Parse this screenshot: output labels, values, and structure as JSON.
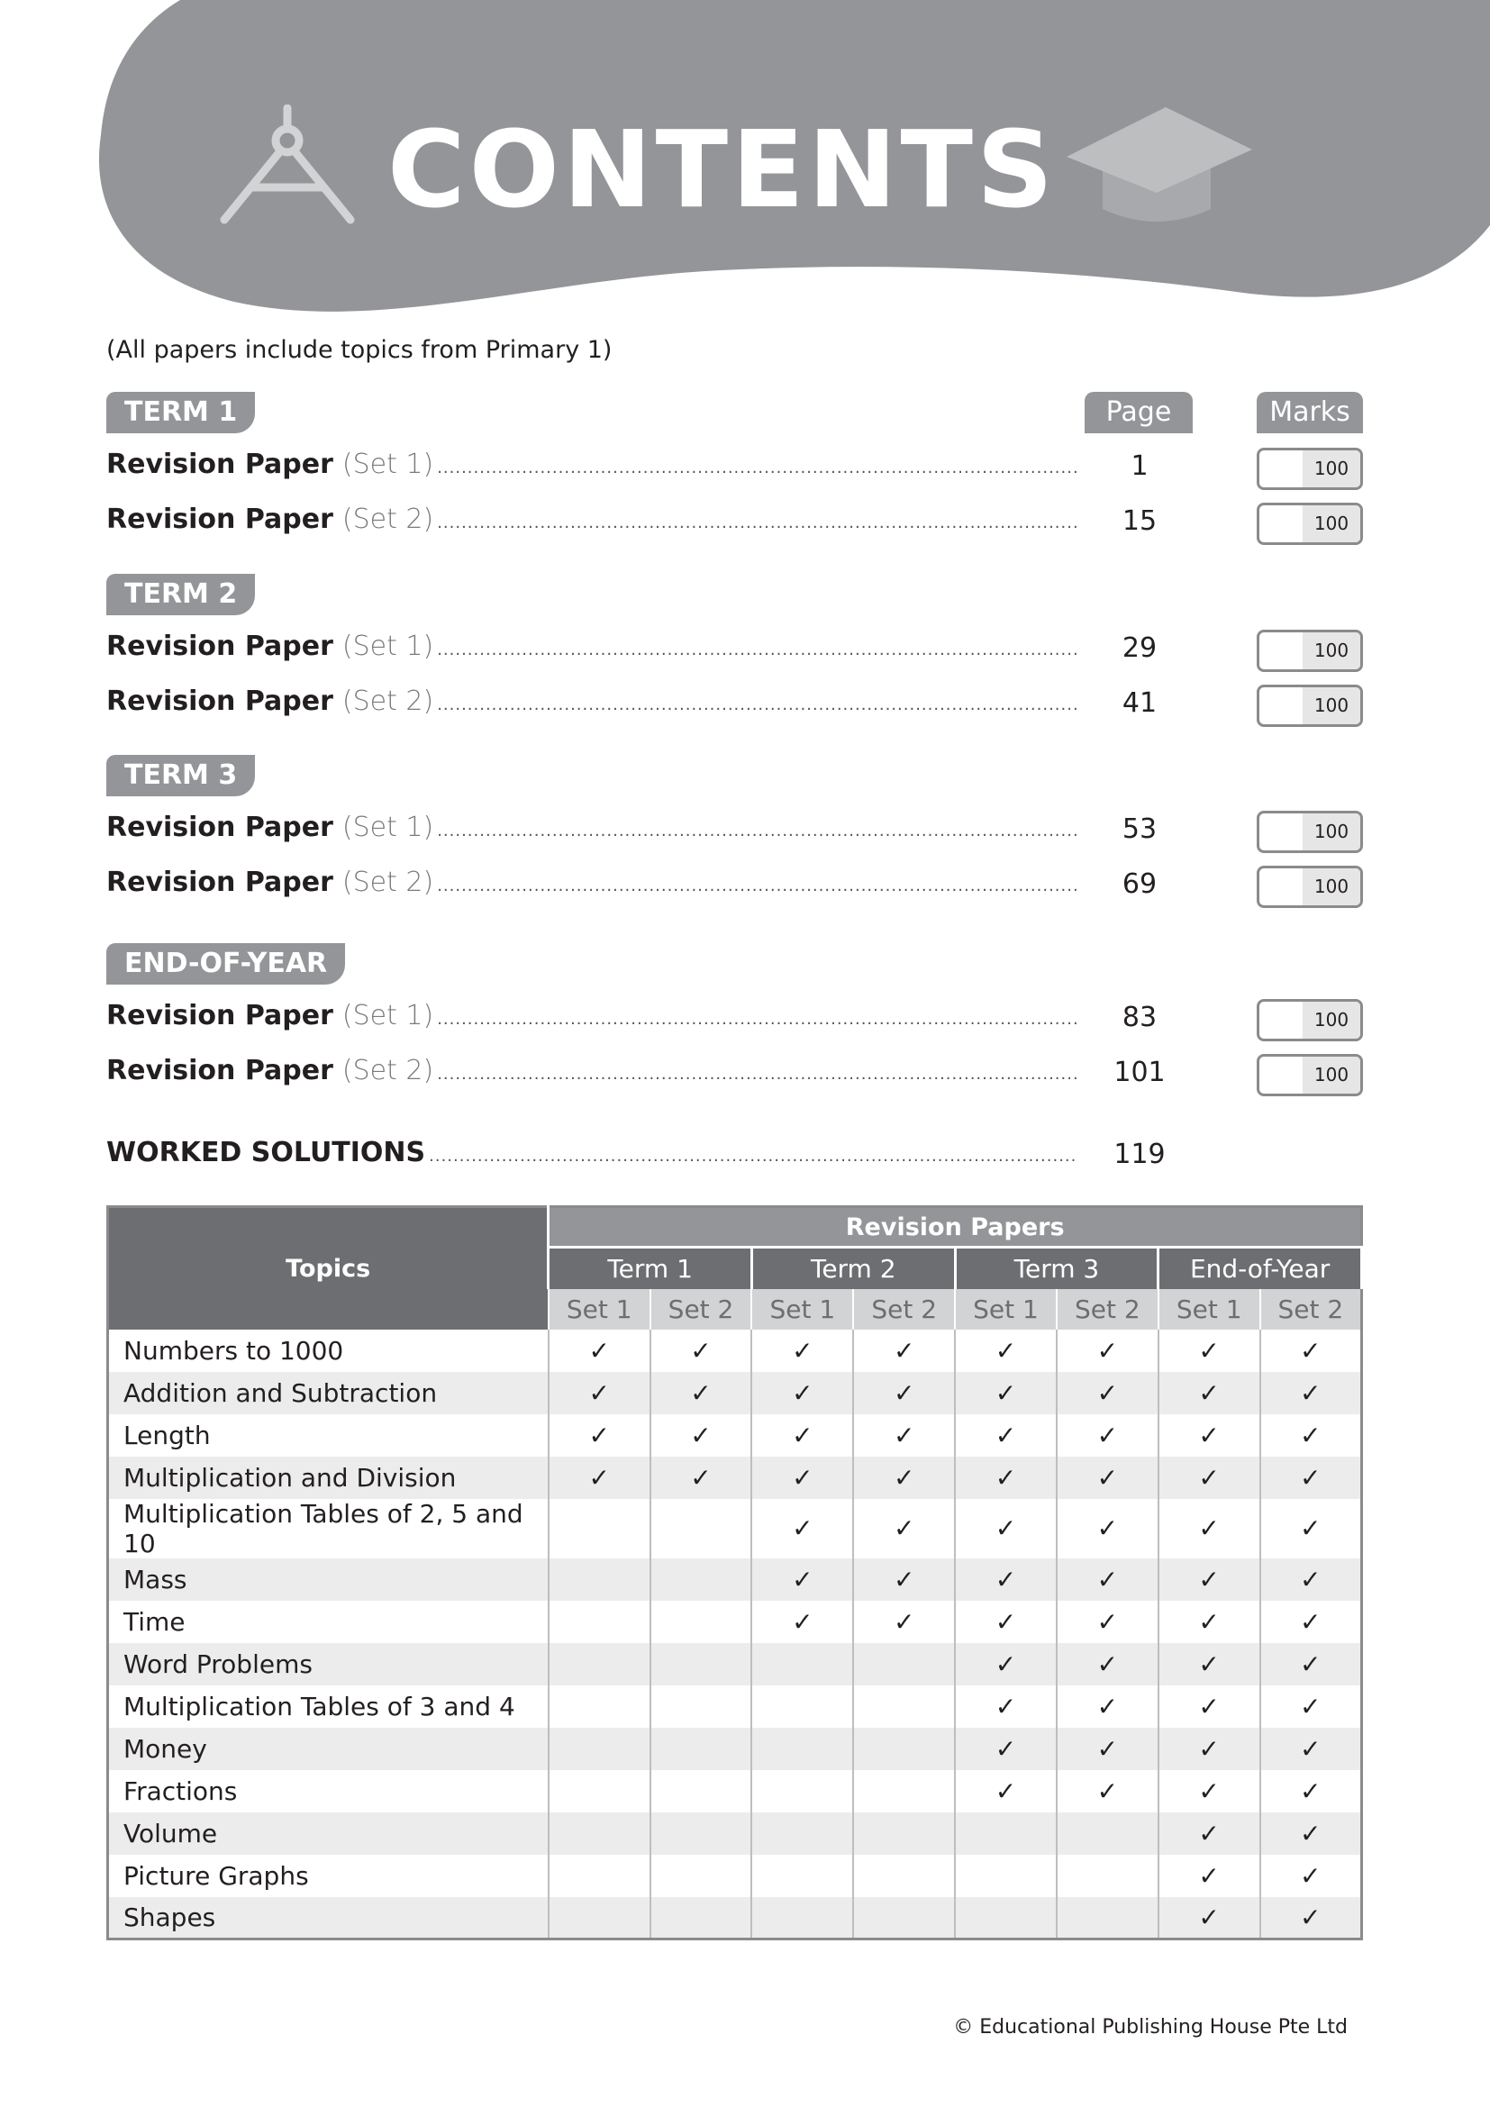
{
  "header": {
    "title": "CONTENTS",
    "bg_color": "#939598",
    "left_icon": "compass-icon",
    "right_icon": "graduation-cap-icon"
  },
  "note": "(All papers include topics from Primary 1)",
  "columns": {
    "page": "Page",
    "marks": "Marks"
  },
  "sections": [
    {
      "label": "TERM 1",
      "papers": [
        {
          "title": "Revision Paper",
          "set": "(Set 1)",
          "page": "1",
          "marks": "100"
        },
        {
          "title": "Revision Paper",
          "set": "(Set 2)",
          "page": "15",
          "marks": "100"
        }
      ]
    },
    {
      "label": "TERM 2",
      "papers": [
        {
          "title": "Revision Paper",
          "set": "(Set 1)",
          "page": "29",
          "marks": "100"
        },
        {
          "title": "Revision Paper",
          "set": "(Set 2)",
          "page": "41",
          "marks": "100"
        }
      ]
    },
    {
      "label": "TERM 3",
      "papers": [
        {
          "title": "Revision Paper",
          "set": "(Set 1)",
          "page": "53",
          "marks": "100"
        },
        {
          "title": "Revision Paper",
          "set": "(Set 2)",
          "page": "69",
          "marks": "100"
        }
      ]
    },
    {
      "label": "END-OF-YEAR",
      "papers": [
        {
          "title": "Revision Paper",
          "set": "(Set 1)",
          "page": "83",
          "marks": "100"
        },
        {
          "title": "Revision Paper",
          "set": "(Set 2)",
          "page": "101",
          "marks": "100"
        }
      ]
    }
  ],
  "worked_solutions": {
    "label": "WORKED SOLUTIONS",
    "page": "119"
  },
  "table": {
    "topics_header": "Topics",
    "group_header": "Revision Papers",
    "terms": [
      "Term 1",
      "Term 2",
      "Term 3",
      "End-of-Year"
    ],
    "sets": [
      "Set 1",
      "Set 2",
      "Set 1",
      "Set 2",
      "Set 1",
      "Set 2",
      "Set 1",
      "Set 2"
    ],
    "check_mark": "✓",
    "rows": [
      {
        "topic": "Numbers to 1000",
        "checks": [
          1,
          1,
          1,
          1,
          1,
          1,
          1,
          1
        ]
      },
      {
        "topic": "Addition and Subtraction",
        "checks": [
          1,
          1,
          1,
          1,
          1,
          1,
          1,
          1
        ]
      },
      {
        "topic": "Length",
        "checks": [
          1,
          1,
          1,
          1,
          1,
          1,
          1,
          1
        ]
      },
      {
        "topic": "Multiplication and Division",
        "checks": [
          1,
          1,
          1,
          1,
          1,
          1,
          1,
          1
        ]
      },
      {
        "topic": "Multiplication Tables of 2, 5 and 10",
        "checks": [
          0,
          0,
          1,
          1,
          1,
          1,
          1,
          1
        ]
      },
      {
        "topic": "Mass",
        "checks": [
          0,
          0,
          1,
          1,
          1,
          1,
          1,
          1
        ]
      },
      {
        "topic": "Time",
        "checks": [
          0,
          0,
          1,
          1,
          1,
          1,
          1,
          1
        ]
      },
      {
        "topic": "Word Problems",
        "checks": [
          0,
          0,
          0,
          0,
          1,
          1,
          1,
          1
        ]
      },
      {
        "topic": "Multiplication Tables of 3 and 4",
        "checks": [
          0,
          0,
          0,
          0,
          1,
          1,
          1,
          1
        ]
      },
      {
        "topic": "Money",
        "checks": [
          0,
          0,
          0,
          0,
          1,
          1,
          1,
          1
        ]
      },
      {
        "topic": "Fractions",
        "checks": [
          0,
          0,
          0,
          0,
          1,
          1,
          1,
          1
        ]
      },
      {
        "topic": "Volume",
        "checks": [
          0,
          0,
          0,
          0,
          0,
          0,
          1,
          1
        ]
      },
      {
        "topic": "Picture Graphs",
        "checks": [
          0,
          0,
          0,
          0,
          0,
          0,
          1,
          1
        ]
      },
      {
        "topic": "Shapes",
        "checks": [
          0,
          0,
          0,
          0,
          0,
          0,
          1,
          1
        ]
      }
    ]
  },
  "footer": "© Educational Publishing House Pte Ltd"
}
